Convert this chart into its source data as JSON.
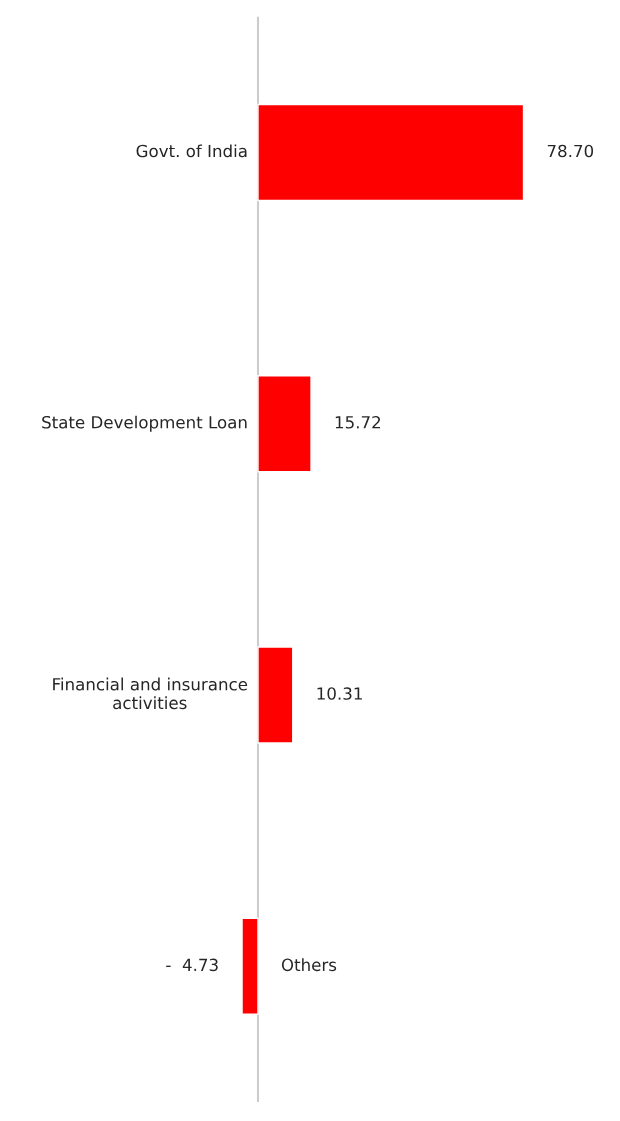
{
  "chart_data": {
    "type": "bar",
    "orientation": "horizontal",
    "categories": [
      "Govt. of India",
      "State Development Loan",
      "Financial and insurance\nactivities",
      "Others"
    ],
    "values": [
      78.7,
      15.72,
      10.31,
      -4.73
    ],
    "value_labels": [
      "78.70",
      "15.72",
      "10.31",
      "-  4.73"
    ],
    "color": "#ff0000",
    "tick_labels": false
  }
}
